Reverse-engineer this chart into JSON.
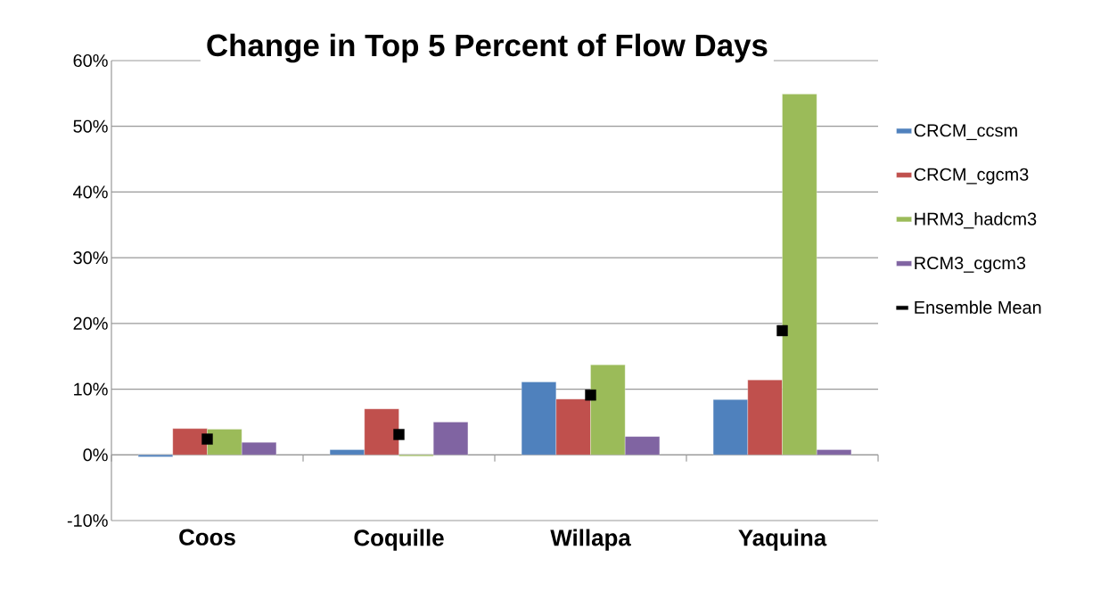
{
  "chart_data": {
    "type": "bar",
    "title": "Change in Top 5 Percent of Flow Days",
    "categories": [
      "Coos",
      "Coquille",
      "Willapa",
      "Yaquina"
    ],
    "series": [
      {
        "name": "CRCM_ccsm",
        "color": "#4f81bd",
        "values": [
          -0.3,
          0.8,
          11.1,
          8.4
        ]
      },
      {
        "name": "CRCM_cgcm3",
        "color": "#c0504d",
        "values": [
          4.0,
          7.0,
          8.5,
          11.4
        ]
      },
      {
        "name": "HRM3_hadcm3",
        "color": "#9bbb59",
        "values": [
          3.9,
          -0.2,
          13.7,
          54.9
        ]
      },
      {
        "name": "RCM3_cgcm3",
        "color": "#8064a2",
        "values": [
          1.9,
          5.0,
          2.8,
          0.8
        ]
      },
      {
        "name": "Ensemble Mean",
        "type": "scatter",
        "marker": "square",
        "color": "#000000",
        "x": [
          "Coos",
          "Coquille",
          "Willapa",
          "Yaquina"
        ],
        "values": [
          2.4,
          3.1,
          9.1,
          18.9
        ]
      }
    ],
    "ylim": [
      -10,
      60
    ],
    "yticks": [
      {
        "value": -10,
        "label": "-10%"
      },
      {
        "value": 0,
        "label": "0%"
      },
      {
        "value": 10,
        "label": "10%"
      },
      {
        "value": 20,
        "label": "20%"
      },
      {
        "value": 30,
        "label": "30%"
      },
      {
        "value": 40,
        "label": "40%"
      },
      {
        "value": 50,
        "label": "50%"
      },
      {
        "value": 60,
        "label": "60%"
      }
    ],
    "grid": "y",
    "legend": "right"
  }
}
